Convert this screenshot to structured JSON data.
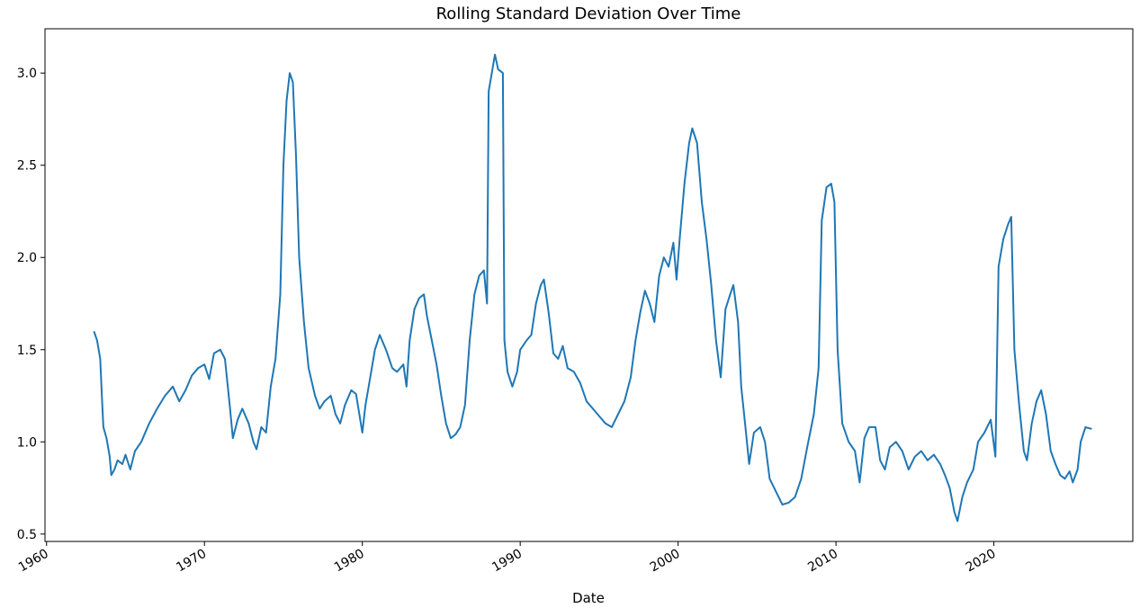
{
  "chart_data": {
    "type": "line",
    "title": "Rolling Standard Deviation Over Time",
    "xlabel": "Date",
    "ylabel": "",
    "xlim": [
      1959.9,
      2028.8
    ],
    "ylim": [
      0.46,
      3.24
    ],
    "x_ticks": [
      {
        "value": 1960,
        "label": "1960"
      },
      {
        "value": 1970,
        "label": "1970"
      },
      {
        "value": 1980,
        "label": "1980"
      },
      {
        "value": 1990,
        "label": "1990"
      },
      {
        "value": 2000,
        "label": "2000"
      },
      {
        "value": 2010,
        "label": "2010"
      },
      {
        "value": 2020,
        "label": "2020"
      }
    ],
    "y_ticks": [
      {
        "value": 0.5,
        "label": "0.5"
      },
      {
        "value": 1.0,
        "label": "1.0"
      },
      {
        "value": 1.5,
        "label": "1.5"
      },
      {
        "value": 2.0,
        "label": "2.0"
      },
      {
        "value": 2.5,
        "label": "2.5"
      },
      {
        "value": 3.0,
        "label": "3.0"
      }
    ],
    "grid": false,
    "legend": false,
    "series": [
      {
        "color": "#1f77b4",
        "points": [
          [
            1963.0,
            1.6
          ],
          [
            1963.2,
            1.55
          ],
          [
            1963.4,
            1.45
          ],
          [
            1963.5,
            1.25
          ],
          [
            1963.6,
            1.08
          ],
          [
            1963.8,
            1.02
          ],
          [
            1964.0,
            0.92
          ],
          [
            1964.1,
            0.82
          ],
          [
            1964.3,
            0.85
          ],
          [
            1964.5,
            0.9
          ],
          [
            1964.8,
            0.88
          ],
          [
            1965.0,
            0.93
          ],
          [
            1965.3,
            0.85
          ],
          [
            1965.6,
            0.95
          ],
          [
            1966.0,
            1.0
          ],
          [
            1966.5,
            1.1
          ],
          [
            1967.0,
            1.18
          ],
          [
            1967.5,
            1.25
          ],
          [
            1968.0,
            1.3
          ],
          [
            1968.4,
            1.22
          ],
          [
            1968.8,
            1.28
          ],
          [
            1969.2,
            1.36
          ],
          [
            1969.6,
            1.4
          ],
          [
            1970.0,
            1.42
          ],
          [
            1970.3,
            1.34
          ],
          [
            1970.6,
            1.48
          ],
          [
            1971.0,
            1.5
          ],
          [
            1971.3,
            1.45
          ],
          [
            1971.6,
            1.2
          ],
          [
            1971.8,
            1.02
          ],
          [
            1972.1,
            1.12
          ],
          [
            1972.4,
            1.18
          ],
          [
            1972.8,
            1.1
          ],
          [
            1973.1,
            1.0
          ],
          [
            1973.3,
            0.96
          ],
          [
            1973.6,
            1.08
          ],
          [
            1973.9,
            1.05
          ],
          [
            1974.2,
            1.3
          ],
          [
            1974.5,
            1.45
          ],
          [
            1974.8,
            1.8
          ],
          [
            1975.0,
            2.5
          ],
          [
            1975.2,
            2.85
          ],
          [
            1975.4,
            3.0
          ],
          [
            1975.6,
            2.95
          ],
          [
            1975.8,
            2.55
          ],
          [
            1976.0,
            2.0
          ],
          [
            1976.3,
            1.65
          ],
          [
            1976.6,
            1.4
          ],
          [
            1977.0,
            1.25
          ],
          [
            1977.3,
            1.18
          ],
          [
            1977.6,
            1.22
          ],
          [
            1978.0,
            1.25
          ],
          [
            1978.3,
            1.15
          ],
          [
            1978.6,
            1.1
          ],
          [
            1978.9,
            1.2
          ],
          [
            1979.3,
            1.28
          ],
          [
            1979.6,
            1.26
          ],
          [
            1980.0,
            1.05
          ],
          [
            1980.2,
            1.2
          ],
          [
            1980.5,
            1.35
          ],
          [
            1980.8,
            1.5
          ],
          [
            1981.1,
            1.58
          ],
          [
            1981.5,
            1.5
          ],
          [
            1981.9,
            1.4
          ],
          [
            1982.2,
            1.38
          ],
          [
            1982.6,
            1.42
          ],
          [
            1982.8,
            1.3
          ],
          [
            1983.0,
            1.55
          ],
          [
            1983.3,
            1.72
          ],
          [
            1983.6,
            1.78
          ],
          [
            1983.9,
            1.8
          ],
          [
            1984.1,
            1.68
          ],
          [
            1984.4,
            1.55
          ],
          [
            1984.7,
            1.42
          ],
          [
            1985.0,
            1.25
          ],
          [
            1985.3,
            1.1
          ],
          [
            1985.6,
            1.02
          ],
          [
            1985.9,
            1.04
          ],
          [
            1986.2,
            1.08
          ],
          [
            1986.5,
            1.2
          ],
          [
            1986.8,
            1.55
          ],
          [
            1987.1,
            1.8
          ],
          [
            1987.4,
            1.9
          ],
          [
            1987.7,
            1.93
          ],
          [
            1987.9,
            1.75
          ],
          [
            1988.0,
            2.9
          ],
          [
            1988.2,
            3.0
          ],
          [
            1988.4,
            3.1
          ],
          [
            1988.6,
            3.02
          ],
          [
            1988.9,
            3.0
          ],
          [
            1989.0,
            1.55
          ],
          [
            1989.2,
            1.38
          ],
          [
            1989.5,
            1.3
          ],
          [
            1989.8,
            1.38
          ],
          [
            1990.0,
            1.5
          ],
          [
            1990.4,
            1.55
          ],
          [
            1990.7,
            1.58
          ],
          [
            1991.0,
            1.75
          ],
          [
            1991.3,
            1.85
          ],
          [
            1991.5,
            1.88
          ],
          [
            1991.8,
            1.7
          ],
          [
            1992.1,
            1.48
          ],
          [
            1992.4,
            1.45
          ],
          [
            1992.7,
            1.52
          ],
          [
            1993.0,
            1.4
          ],
          [
            1993.4,
            1.38
          ],
          [
            1993.8,
            1.32
          ],
          [
            1994.2,
            1.22
          ],
          [
            1994.6,
            1.18
          ],
          [
            1995.0,
            1.14
          ],
          [
            1995.4,
            1.1
          ],
          [
            1995.8,
            1.08
          ],
          [
            1996.2,
            1.15
          ],
          [
            1996.6,
            1.22
          ],
          [
            1997.0,
            1.35
          ],
          [
            1997.3,
            1.55
          ],
          [
            1997.6,
            1.7
          ],
          [
            1997.9,
            1.82
          ],
          [
            1998.2,
            1.75
          ],
          [
            1998.5,
            1.65
          ],
          [
            1998.8,
            1.9
          ],
          [
            1999.1,
            2.0
          ],
          [
            1999.4,
            1.95
          ],
          [
            1999.7,
            2.08
          ],
          [
            1999.9,
            1.88
          ],
          [
            2000.1,
            2.1
          ],
          [
            2000.4,
            2.4
          ],
          [
            2000.7,
            2.62
          ],
          [
            2000.9,
            2.7
          ],
          [
            2001.2,
            2.62
          ],
          [
            2001.5,
            2.3
          ],
          [
            2001.8,
            2.1
          ],
          [
            2002.1,
            1.85
          ],
          [
            2002.4,
            1.55
          ],
          [
            2002.7,
            1.35
          ],
          [
            2003.0,
            1.72
          ],
          [
            2003.3,
            1.8
          ],
          [
            2003.5,
            1.85
          ],
          [
            2003.8,
            1.65
          ],
          [
            2004.0,
            1.3
          ],
          [
            2004.3,
            1.05
          ],
          [
            2004.5,
            0.88
          ],
          [
            2004.8,
            1.05
          ],
          [
            2005.2,
            1.08
          ],
          [
            2005.5,
            1.0
          ],
          [
            2005.8,
            0.8
          ],
          [
            2006.2,
            0.73
          ],
          [
            2006.6,
            0.66
          ],
          [
            2007.0,
            0.67
          ],
          [
            2007.4,
            0.7
          ],
          [
            2007.8,
            0.8
          ],
          [
            2008.2,
            0.98
          ],
          [
            2008.6,
            1.15
          ],
          [
            2008.9,
            1.4
          ],
          [
            2009.1,
            2.2
          ],
          [
            2009.4,
            2.38
          ],
          [
            2009.7,
            2.4
          ],
          [
            2009.9,
            2.3
          ],
          [
            2010.1,
            1.5
          ],
          [
            2010.4,
            1.1
          ],
          [
            2010.8,
            1.0
          ],
          [
            2011.2,
            0.95
          ],
          [
            2011.5,
            0.78
          ],
          [
            2011.8,
            1.02
          ],
          [
            2012.1,
            1.08
          ],
          [
            2012.5,
            1.08
          ],
          [
            2012.8,
            0.9
          ],
          [
            2013.1,
            0.85
          ],
          [
            2013.4,
            0.97
          ],
          [
            2013.8,
            1.0
          ],
          [
            2014.2,
            0.95
          ],
          [
            2014.6,
            0.85
          ],
          [
            2015.0,
            0.92
          ],
          [
            2015.4,
            0.95
          ],
          [
            2015.8,
            0.9
          ],
          [
            2016.2,
            0.93
          ],
          [
            2016.6,
            0.88
          ],
          [
            2016.9,
            0.82
          ],
          [
            2017.2,
            0.75
          ],
          [
            2017.5,
            0.62
          ],
          [
            2017.7,
            0.57
          ],
          [
            2018.0,
            0.7
          ],
          [
            2018.3,
            0.78
          ],
          [
            2018.7,
            0.85
          ],
          [
            2019.0,
            1.0
          ],
          [
            2019.4,
            1.05
          ],
          [
            2019.8,
            1.12
          ],
          [
            2020.1,
            0.92
          ],
          [
            2020.3,
            1.95
          ],
          [
            2020.6,
            2.1
          ],
          [
            2020.9,
            2.18
          ],
          [
            2021.1,
            2.22
          ],
          [
            2021.3,
            1.5
          ],
          [
            2021.6,
            1.2
          ],
          [
            2021.9,
            0.95
          ],
          [
            2022.1,
            0.9
          ],
          [
            2022.4,
            1.1
          ],
          [
            2022.7,
            1.22
          ],
          [
            2023.0,
            1.28
          ],
          [
            2023.3,
            1.15
          ],
          [
            2023.6,
            0.95
          ],
          [
            2023.9,
            0.88
          ],
          [
            2024.2,
            0.82
          ],
          [
            2024.5,
            0.8
          ],
          [
            2024.8,
            0.84
          ],
          [
            2025.0,
            0.78
          ],
          [
            2025.3,
            0.85
          ],
          [
            2025.5,
            1.0
          ],
          [
            2025.8,
            1.08
          ],
          [
            2026.2,
            1.07
          ]
        ]
      }
    ]
  }
}
